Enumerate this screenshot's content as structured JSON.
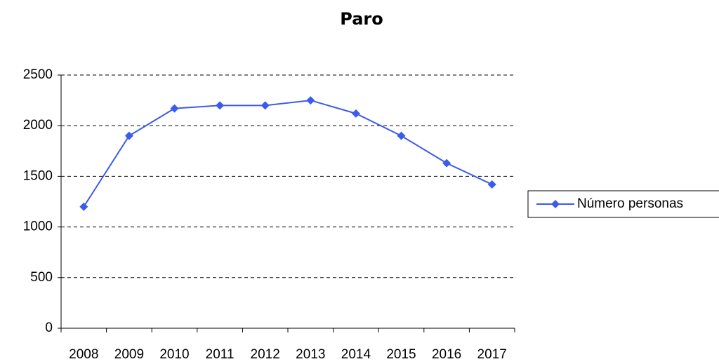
{
  "chart_data": {
    "type": "line",
    "title": "Paro",
    "categories": [
      "2008",
      "2009",
      "2010",
      "2011",
      "2012",
      "2013",
      "2014",
      "2015",
      "2016",
      "2017"
    ],
    "series": [
      {
        "name": "Número personas",
        "color": "#3b5bea",
        "values": [
          1200,
          1900,
          2170,
          2200,
          2200,
          2250,
          2120,
          1900,
          1630,
          1420
        ]
      }
    ],
    "ylim": [
      0,
      2500
    ],
    "yticks": [
      0,
      500,
      1000,
      1500,
      2000,
      2500
    ],
    "grid": true,
    "legend": "right"
  }
}
